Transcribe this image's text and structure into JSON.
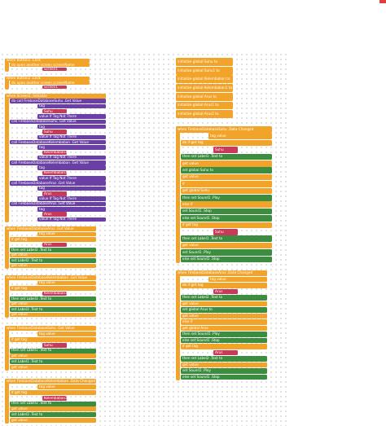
{
  "workspace": {
    "groups": [
      {
        "lines": [
          "when Button1 .Click",
          "do open another screen screenName",
          "Screen1"
        ]
      },
      {
        "lines": [
          "when Button2 .Click",
          "do open another screen screenName",
          "Screen1"
        ]
      },
      {
        "lines": [
          "when Screen1 .Initialize",
          "do call FirebaseDatabaseSuhu .Get Value",
          "tag",
          "Suhu",
          "value If Tag Not There",
          "call FirebaseDatabaseSuhu .Get Value",
          "tag",
          "Suhu",
          "value If Tag Not There",
          "call FirebaseDatabaseKelembaban .Get Value",
          "tag",
          "Kelembaban1",
          "value If Tag Not There",
          "call FirebaseDatabaseKelembaban .Get Value",
          "tag",
          "Kelembaban1",
          "value If Tag Not There",
          "call FirebaseDatabaseArus .Get Value",
          "tag",
          "Arus",
          "value If Tag Not There",
          "call FirebaseDatabaseArus .Get Value",
          "tag",
          "Arus",
          "value If Tag Not There"
        ]
      },
      {
        "lines": [
          "when FirebaseDatabaseArus .Got Value",
          "tag value",
          "if get tag",
          "Arus",
          "then set Label2 .Text to",
          "get value",
          "set Label2 .Text to",
          "get value"
        ]
      },
      {
        "lines": [
          "when FirebaseDatabaseKelembaban .Got Value",
          "tag value",
          "if get tag",
          "Kelembaban1",
          "then set Label3 .Text to",
          "get value",
          "set Label3 .Text to",
          "get value"
        ]
      },
      {
        "lines": [
          "when FirebaseDatabaseSuhu .Got Value",
          "tag value",
          "if get tag",
          "Suhu",
          "then set Label1 .Text to",
          "get value",
          "set Label1 .Text to",
          "get value"
        ]
      },
      {
        "lines": [
          "when FirebaseDatabaseKelembaban .Data Changed",
          "tag value",
          "if get tag",
          "Kelembaban1",
          "then set Label3 .Text to",
          "get value",
          "set Label3 .Text to",
          "get value"
        ]
      },
      {
        "lines": [
          "initialize global Suhu to",
          "initialize global Suhu1 to",
          "initialize global Kelembaban to",
          "initialize global Kelembaban1 to",
          "initialize global Arus to",
          "initialize global Arus1 to",
          "initialize global Arus2 to"
        ]
      },
      {
        "lines": [
          "when FirebaseDatabaseSuhu .Data Changed",
          "tag value",
          "do if get tag",
          "Suhu",
          "then set Label1 .Text to",
          "get value",
          "set global Suhu to",
          "get value",
          "if",
          "get global Suhu",
          "then set Sound1 .Play",
          "else if",
          "set Sound1 .Stop",
          "else set Sound1 .Stop",
          "if get tag",
          "Suhu",
          "then set Label1 .Text to",
          "get value",
          "set Sound1 .Play",
          "else set Sound1 .Stop"
        ]
      },
      {
        "lines": [
          "when FirebaseDatabaseArus .Data Changed",
          "tag value",
          "do if get tag",
          "Arus",
          "then set Label2 .Text to",
          "get value",
          "set global Arus to",
          "get value",
          "else if",
          "get global Arus",
          "then set Sound1 .Play",
          "else set Sound1 .Stop",
          "if get tag",
          "Arus",
          "then set Label2 .Text to",
          "get value",
          "set Sound1 .Play",
          "else set Sound1 .Stop"
        ]
      }
    ]
  }
}
